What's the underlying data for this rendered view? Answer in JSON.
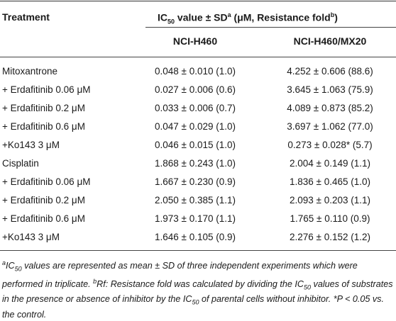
{
  "header": {
    "treatment": "Treatment",
    "ic_prefix": "IC",
    "ic_sub": "50",
    "ic_mid": " value ± SD",
    "ic_sup_a": "a",
    "ic_units": " (μM, Resistance fold",
    "ic_sup_b": "b",
    "ic_close": ")",
    "col_a": "NCI-H460",
    "col_b": "NCI-H460/MX20"
  },
  "rows": [
    {
      "t": "Mitoxantrone",
      "a": "0.048 ± 0.010 (1.0)",
      "b": "4.252 ± 0.606 (88.6)"
    },
    {
      "t": "+ Erdafitinib 0.06 μM",
      "a": "0.027 ± 0.006 (0.6)",
      "b": "3.645 ± 1.063 (75.9)"
    },
    {
      "t": "+ Erdafitinib 0.2 μM",
      "a": "0.033 ± 0.006 (0.7)",
      "b": "4.089 ± 0.873 (85.2)"
    },
    {
      "t": "+ Erdafitinib 0.6 μM",
      "a": "0.047 ± 0.029 (1.0)",
      "b": "3.697 ± 1.062 (77.0)"
    },
    {
      "t": "+Ko143 3 μM",
      "a": "0.046 ± 0.015 (1.0)",
      "b": "0.273 ± 0.028* (5.7)"
    },
    {
      "t": "Cisplatin",
      "a": "1.868 ± 0.243 (1.0)",
      "b": "2.004 ± 0.149 (1.1)"
    },
    {
      "t": "+ Erdafitinib 0.06 μM",
      "a": "1.667 ± 0.230 (0.9)",
      "b": "1.836 ± 0.465 (1.0)"
    },
    {
      "t": "+ Erdafitinib 0.2 μM",
      "a": "2.050 ± 0.385 (1.1)",
      "b": "2.093 ± 0.203 (1.1)"
    },
    {
      "t": "+ Erdafitinib 0.6 μM",
      "a": "1.973 ± 0.170 (1.1)",
      "b": "1.765 ± 0.110 (0.9)"
    },
    {
      "t": "+Ko143 3 μM",
      "a": "1.646 ± 0.105 (0.9)",
      "b": "2.276 ± 0.152 (1.2)"
    }
  ],
  "footnote": {
    "sup_a": "a",
    "ic": "IC",
    "ic_sub": "50",
    "text1": " values are represented as mean ± SD of three independent experiments which were performed in triplicate. ",
    "sup_b": "b",
    "text2": "Rf: Resistance fold was calculated by dividing the IC",
    "text2_sub": "50",
    "text3": " values of substrates in the presence or absence of inhibitor by the IC",
    "text3_sub": "50",
    "text4": " of parental cells without inhibitor. *P < 0.05 vs. the control."
  }
}
